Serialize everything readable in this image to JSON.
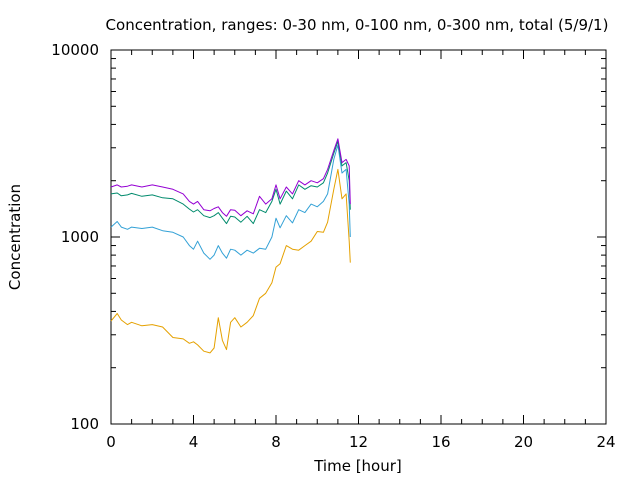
{
  "chart_data": {
    "type": "line",
    "title": "Concentration, ranges: 0-30 nm, 0-100 nm, 0-300 nm, total (5/9/1)",
    "xlabel": "Time [hour]",
    "ylabel": "Concentration",
    "xlim": [
      0,
      24
    ],
    "ylim": [
      100,
      10000
    ],
    "yscale": "log",
    "grid": false,
    "xticks": [
      0,
      4,
      8,
      12,
      16,
      20,
      24
    ],
    "xtick_labels": [
      "0",
      "4",
      "8",
      "12",
      "16",
      "20",
      "24"
    ],
    "yticks": [
      100,
      1000,
      10000
    ],
    "ytick_labels": [
      "100",
      "1000",
      "10000"
    ],
    "colors": [
      "#e5a100",
      "#33a1d6",
      "#008a6c",
      "#9400d3"
    ],
    "series": [
      {
        "x": [
          0,
          0.3,
          0.5,
          0.8,
          1.0,
          1.5,
          2.0,
          2.5,
          3.0,
          3.5,
          3.8,
          4.0,
          4.2,
          4.5,
          4.8,
          5.0,
          5.2,
          5.4,
          5.6,
          5.8,
          6.0,
          6.3,
          6.6,
          6.9,
          7.2,
          7.5,
          7.8,
          8.0,
          8.2,
          8.5,
          8.8,
          9.1,
          9.4,
          9.7,
          10.0,
          10.3,
          10.5,
          10.8,
          11.0,
          11.2,
          11.4,
          11.55,
          11.6
        ],
        "values": [
          355,
          390,
          360,
          340,
          350,
          335,
          340,
          330,
          290,
          285,
          270,
          275,
          265,
          245,
          240,
          255,
          370,
          280,
          250,
          350,
          370,
          330,
          350,
          380,
          470,
          500,
          570,
          690,
          720,
          900,
          860,
          850,
          900,
          950,
          1070,
          1060,
          1200,
          1800,
          2300,
          1600,
          1700,
          950,
          730
        ]
      },
      {
        "x": [
          0,
          0.3,
          0.5,
          0.8,
          1.0,
          1.5,
          2.0,
          2.5,
          3.0,
          3.5,
          3.8,
          4.0,
          4.2,
          4.5,
          4.8,
          5.0,
          5.2,
          5.4,
          5.6,
          5.8,
          6.0,
          6.3,
          6.6,
          6.9,
          7.2,
          7.5,
          7.8,
          8.0,
          8.2,
          8.5,
          8.8,
          9.1,
          9.4,
          9.7,
          10.0,
          10.3,
          10.5,
          10.8,
          11.0,
          11.2,
          11.4,
          11.55,
          11.6
        ],
        "values": [
          1130,
          1210,
          1130,
          1100,
          1130,
          1110,
          1130,
          1080,
          1060,
          1000,
          900,
          860,
          950,
          820,
          760,
          800,
          900,
          820,
          770,
          860,
          850,
          800,
          850,
          820,
          870,
          860,
          1000,
          1260,
          1120,
          1300,
          1190,
          1400,
          1350,
          1500,
          1450,
          1550,
          1700,
          2600,
          3100,
          2200,
          2300,
          1500,
          1000
        ]
      },
      {
        "x": [
          0,
          0.3,
          0.5,
          0.8,
          1.0,
          1.5,
          2.0,
          2.5,
          3.0,
          3.5,
          3.8,
          4.0,
          4.2,
          4.5,
          4.8,
          5.0,
          5.2,
          5.4,
          5.6,
          5.8,
          6.0,
          6.3,
          6.6,
          6.9,
          7.2,
          7.5,
          7.8,
          8.0,
          8.2,
          8.5,
          8.8,
          9.1,
          9.4,
          9.7,
          10.0,
          10.3,
          10.5,
          10.8,
          11.0,
          11.2,
          11.4,
          11.55,
          11.6
        ],
        "values": [
          1700,
          1720,
          1660,
          1680,
          1710,
          1650,
          1680,
          1620,
          1600,
          1500,
          1410,
          1360,
          1400,
          1300,
          1270,
          1300,
          1350,
          1260,
          1180,
          1290,
          1280,
          1200,
          1290,
          1180,
          1400,
          1350,
          1550,
          1800,
          1500,
          1760,
          1600,
          1900,
          1800,
          1880,
          1850,
          1950,
          2200,
          2800,
          3250,
          2400,
          2500,
          2000,
          1400
        ]
      },
      {
        "x": [
          0,
          0.3,
          0.5,
          0.8,
          1.0,
          1.5,
          2.0,
          2.5,
          3.0,
          3.5,
          3.8,
          4.0,
          4.2,
          4.5,
          4.8,
          5.0,
          5.2,
          5.4,
          5.6,
          5.8,
          6.0,
          6.3,
          6.6,
          6.9,
          7.2,
          7.5,
          7.8,
          8.0,
          8.2,
          8.5,
          8.8,
          9.1,
          9.4,
          9.7,
          10.0,
          10.3,
          10.5,
          10.8,
          11.0,
          11.2,
          11.4,
          11.55,
          11.6
        ],
        "values": [
          1850,
          1900,
          1850,
          1870,
          1900,
          1850,
          1900,
          1850,
          1800,
          1700,
          1550,
          1500,
          1550,
          1400,
          1380,
          1420,
          1450,
          1350,
          1290,
          1400,
          1390,
          1300,
          1380,
          1330,
          1650,
          1500,
          1600,
          1900,
          1600,
          1850,
          1700,
          2000,
          1900,
          2000,
          1950,
          2050,
          2300,
          2900,
          3350,
          2500,
          2600,
          2400,
          1500
        ]
      }
    ]
  }
}
